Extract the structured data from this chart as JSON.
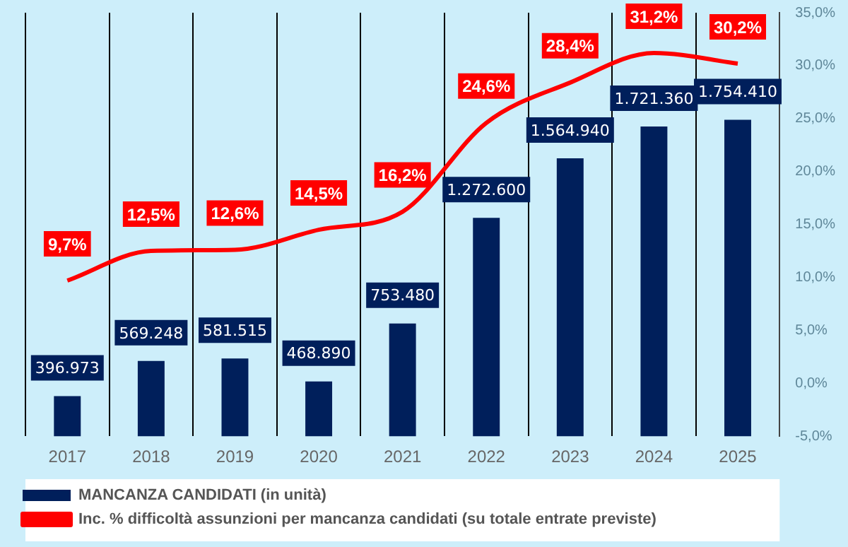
{
  "chart_data": {
    "type": "bar",
    "categories": [
      "2017",
      "2018",
      "2019",
      "2020",
      "2021",
      "2022",
      "2023",
      "2024",
      "2025"
    ],
    "series": [
      {
        "name": "MANCANZA CANDIDATI (in unità)",
        "color": "#001f5b",
        "values": [
          396973,
          569248,
          581515,
          468890,
          753480,
          1272600,
          1564940,
          1721360,
          1754410
        ],
        "value_labels": [
          "396.973",
          "569.248",
          "581.515",
          "468.890",
          "753.480",
          "1.272.600",
          "1.564.940",
          "1.721.360",
          "1.754.410"
        ]
      },
      {
        "name": "Inc. % difficoltà assunzioni per mancanza candidati (su totale entrate previste)",
        "type": "line",
        "axis": "y2",
        "color": "#ff0000",
        "values": [
          9.7,
          12.5,
          12.6,
          14.5,
          16.2,
          24.6,
          28.4,
          31.2,
          30.2
        ],
        "value_labels": [
          "9,7%",
          "12,5%",
          "12,6%",
          "14,5%",
          "16,2%",
          "24,6%",
          "28,4%",
          "31,2%",
          "30,2%"
        ]
      }
    ],
    "ylim": [
      200000,
      2280000
    ],
    "y2lim": [
      -5,
      35
    ],
    "y2ticks": [
      {
        "value": -5,
        "label": "-5,0%"
      },
      {
        "value": 0,
        "label": "0,0%"
      },
      {
        "value": 5,
        "label": "5,0%"
      },
      {
        "value": 10,
        "label": "10,0%"
      },
      {
        "value": 15,
        "label": "15,0%"
      },
      {
        "value": 20,
        "label": "20,0%"
      },
      {
        "value": 25,
        "label": "25,0%"
      },
      {
        "value": 30,
        "label": "30,0%"
      },
      {
        "value": 35,
        "label": "35,0%"
      }
    ],
    "grid": "x",
    "legend": "bottom",
    "marker": "none"
  }
}
